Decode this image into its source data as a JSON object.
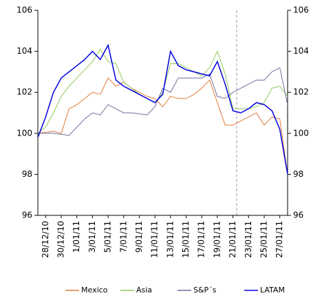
{
  "chart_data": {
    "type": "line",
    "categories": [
      null,
      "28/12/10",
      null,
      "30/12/10",
      null,
      "1/01/11",
      null,
      "3/01/11",
      null,
      "5/01/11",
      null,
      "7/01/11",
      null,
      "9/01/11",
      null,
      "11/01/11",
      null,
      "13/01/11",
      null,
      "15/01/11",
      null,
      "17/01/11",
      null,
      "19/01/11",
      null,
      "21/01/11",
      null,
      "23/01/11",
      null,
      "25/01/11",
      null,
      "27/01/11",
      null
    ],
    "series": [
      {
        "name": "Mexico",
        "color": "#e07b39",
        "values": [
          100.0,
          100.05,
          100.1,
          100.0,
          101.2,
          101.4,
          101.7,
          102.0,
          101.9,
          102.7,
          102.3,
          102.5,
          102.2,
          102.0,
          101.8,
          101.7,
          101.3,
          101.8,
          101.7,
          101.7,
          101.9,
          102.2,
          102.6,
          101.5,
          100.4,
          100.4,
          100.6,
          100.8,
          101.0,
          100.4,
          100.8,
          100.7,
          98.0
        ]
      },
      {
        "name": "Asia",
        "color": "#8fca5a",
        "values": [
          100.0,
          100.3,
          101.0,
          101.8,
          102.3,
          102.7,
          103.1,
          103.5,
          104.1,
          103.5,
          103.4,
          102.5,
          102.2,
          101.9,
          101.7,
          101.5,
          102.0,
          103.4,
          103.4,
          103.2,
          103.0,
          102.8,
          103.2,
          104.0,
          102.9,
          101.2,
          101.2,
          101.2,
          101.3,
          101.5,
          102.2,
          102.3,
          101.8
        ]
      },
      {
        "name": "S&P´s",
        "color": "#6f6f9f",
        "values": [
          100.0,
          100.0,
          100.0,
          99.95,
          99.9,
          100.3,
          100.7,
          101.0,
          100.9,
          101.4,
          101.2,
          101.0,
          101.0,
          100.95,
          100.9,
          101.3,
          102.2,
          102.0,
          102.7,
          102.7,
          102.7,
          102.7,
          102.9,
          101.8,
          101.7,
          102.0,
          102.2,
          102.4,
          102.6,
          102.6,
          103.0,
          103.2,
          101.4
        ]
      },
      {
        "name": "LATAM",
        "color": "#0000e0",
        "values": [
          99.8,
          100.8,
          102.0,
          102.7,
          103.0,
          103.3,
          103.6,
          104.0,
          103.6,
          104.3,
          102.6,
          102.3,
          102.1,
          101.9,
          101.7,
          101.5,
          101.9,
          104.0,
          103.3,
          103.1,
          103.0,
          102.9,
          102.8,
          103.5,
          102.4,
          101.1,
          101.0,
          101.2,
          101.5,
          101.4,
          101.1,
          100.2,
          98.0
        ]
      }
    ],
    "ylim": [
      96,
      106
    ],
    "yticks": [
      96,
      98,
      100,
      102,
      104,
      106
    ],
    "y2lim": [
      96,
      106
    ],
    "y2ticks": [
      96,
      98,
      100,
      102,
      104,
      106
    ],
    "legend": "bottom"
  }
}
